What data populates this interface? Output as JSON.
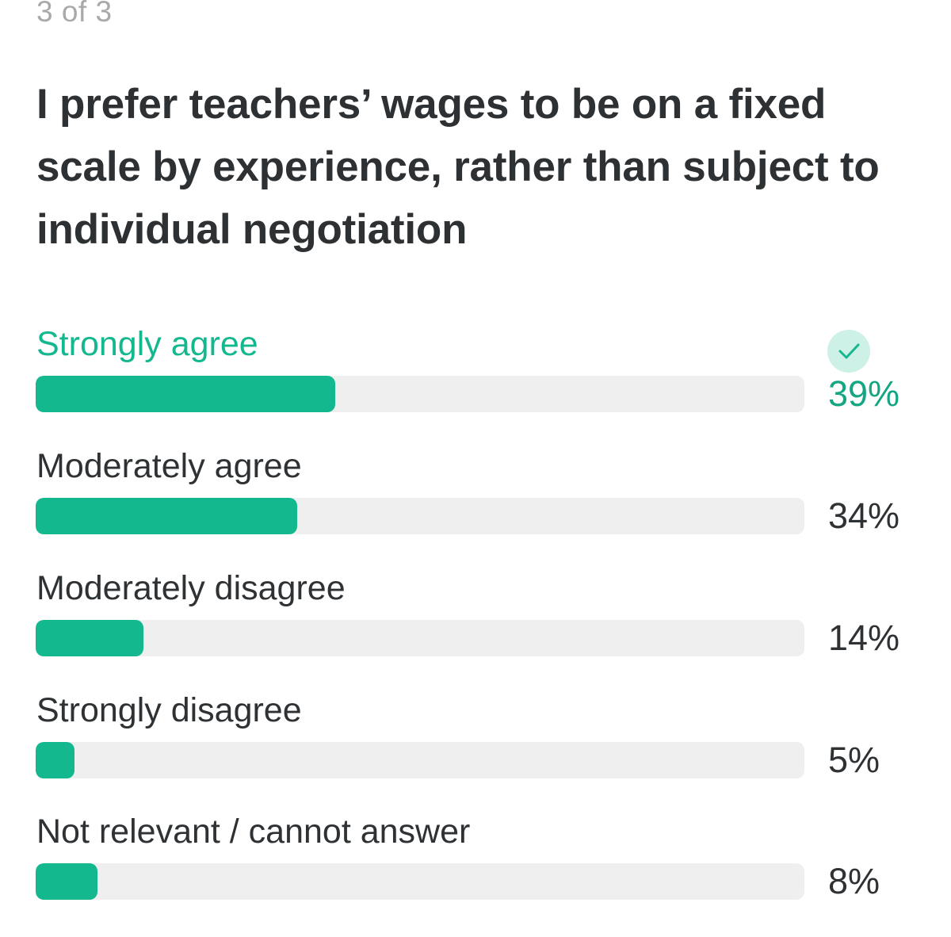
{
  "poll": {
    "progress": "3 of 3",
    "question": "I prefer teachers’ wages to be on a fixed scale by experience, rather than subject to individual negotiation",
    "options": [
      {
        "label": "Strongly agree",
        "percent": 39,
        "percent_text": "39%",
        "selected": true
      },
      {
        "label": "Moderately agree",
        "percent": 34,
        "percent_text": "34%",
        "selected": false
      },
      {
        "label": "Moderately disagree",
        "percent": 14,
        "percent_text": "14%",
        "selected": false
      },
      {
        "label": "Strongly disagree",
        "percent": 5,
        "percent_text": "5%",
        "selected": false
      },
      {
        "label": "Not relevant / cannot answer",
        "percent": 8,
        "percent_text": "8%",
        "selected": false
      }
    ]
  },
  "icons": {
    "selected_marker": "check-icon"
  },
  "colors": {
    "accent": "#14b88e",
    "accent_text": "#14a583",
    "badge_bg": "#cdf1e6",
    "track": "#efefef",
    "text": "#2f3234",
    "muted": "#a7a9ab"
  }
}
